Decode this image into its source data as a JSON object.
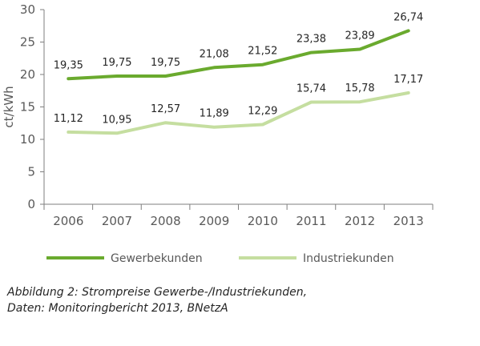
{
  "chart_data": {
    "type": "line",
    "categories": [
      "2006",
      "2007",
      "2008",
      "2009",
      "2010",
      "2011",
      "2012",
      "2013"
    ],
    "series": [
      {
        "name": "Gewerbekunden",
        "values": [
          19.35,
          19.75,
          19.75,
          21.08,
          21.52,
          23.38,
          23.89,
          26.74
        ],
        "labels": [
          "19,35",
          "19,75",
          "19,75",
          "21,08",
          "21,52",
          "23,38",
          "23,89",
          "26,74"
        ],
        "color": "#6aaa2e"
      },
      {
        "name": "Industriekunden",
        "values": [
          11.12,
          10.95,
          12.57,
          11.89,
          12.29,
          15.74,
          15.78,
          17.17
        ],
        "labels": [
          "11,12",
          "10,95",
          "12,57",
          "11,89",
          "12,29",
          "15,74",
          "15,78",
          "17,17"
        ],
        "color": "#c5dea0"
      }
    ],
    "ylabel": "ct/kWh",
    "ylim": [
      0,
      30
    ],
    "yticks": [
      0,
      5,
      10,
      15,
      20,
      25,
      30
    ],
    "ytick_labels": [
      "0",
      "5",
      "10",
      "15",
      "20",
      "25",
      "30"
    ],
    "grid": false,
    "legend_position": "bottom"
  },
  "caption": {
    "line1": "Abbildung  2:  Strompreise  Gewerbe-/Industriekunden,",
    "line2": "Daten: Monitoringbericht 2013, BNetzA"
  }
}
